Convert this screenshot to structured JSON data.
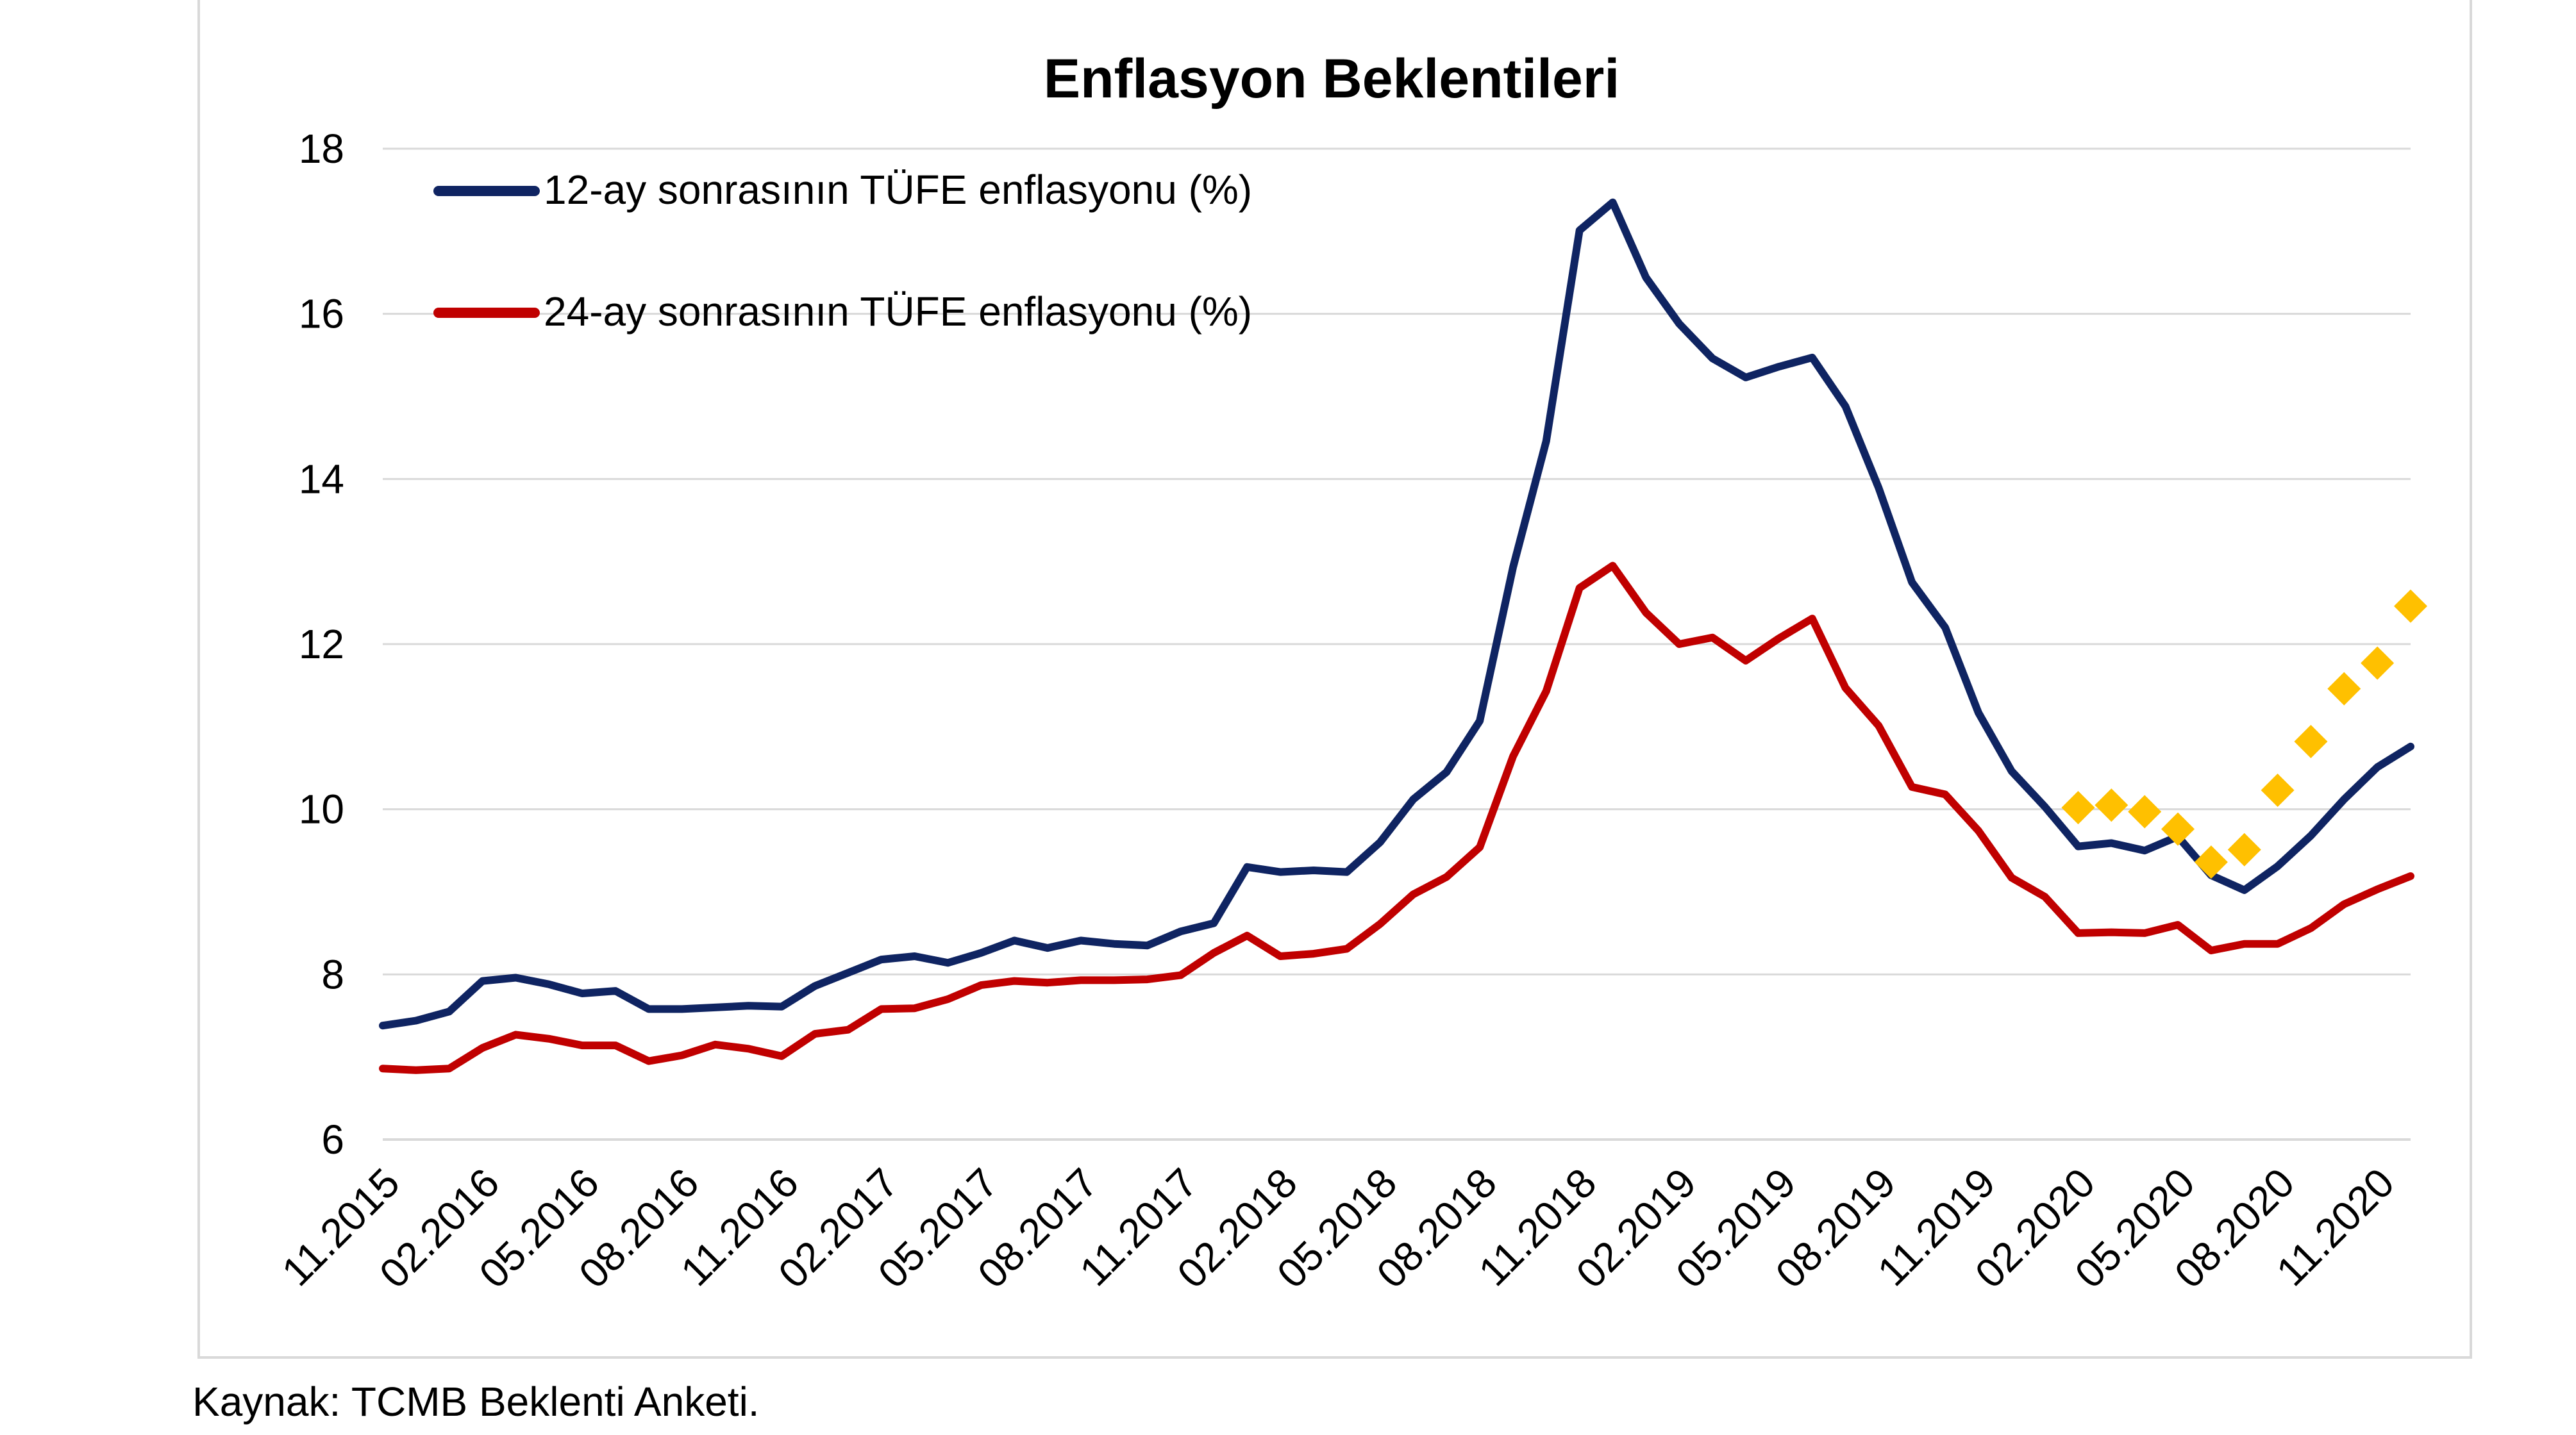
{
  "chart_data": {
    "type": "line",
    "title": "Enflasyon Beklentileri",
    "xlabel": "",
    "ylabel": "",
    "ylim": [
      6,
      18
    ],
    "yticks": [
      6,
      8,
      10,
      12,
      14,
      16,
      18
    ],
    "grid": "horizontal",
    "legend_position": "top-left",
    "x_tick_labels": [
      "11.2015",
      "02.2016",
      "05.2016",
      "08.2016",
      "11.2016",
      "02.2017",
      "05.2017",
      "08.2017",
      "11.2017",
      "02.2018",
      "05.2018",
      "08.2018",
      "11.2018",
      "02.2019",
      "05.2019",
      "08.2019",
      "11.2019",
      "02.2020",
      "05.2020",
      "08.2020",
      "11.2020"
    ],
    "x_start": "11.2015",
    "series": [
      {
        "name": "12-ay sonrasının TÜFE enflasyonu (%)",
        "color": "#0f2462",
        "style": "line",
        "values": [
          7.38,
          7.44,
          7.55,
          7.92,
          7.96,
          7.88,
          7.77,
          7.8,
          7.58,
          7.58,
          7.6,
          7.62,
          7.61,
          7.86,
          8.02,
          8.18,
          8.22,
          8.14,
          8.26,
          8.41,
          8.32,
          8.41,
          8.37,
          8.35,
          8.52,
          8.62,
          9.3,
          9.24,
          9.26,
          9.24,
          9.6,
          10.12,
          10.45,
          11.07,
          12.93,
          14.46,
          17.01,
          17.35,
          16.44,
          15.88,
          15.46,
          15.23,
          15.36,
          15.47,
          14.88,
          13.89,
          12.75,
          12.2,
          11.17,
          10.46,
          10.03,
          9.55,
          9.59,
          9.5,
          9.67,
          9.2,
          9.02,
          9.31,
          9.68,
          10.12,
          10.51,
          10.76
        ]
      },
      {
        "name": "24-ay sonrasının TÜFE enflasyonu (%)",
        "color": "#c00000",
        "style": "line",
        "values": [
          6.86,
          6.84,
          6.86,
          7.11,
          7.27,
          7.22,
          7.14,
          7.14,
          6.95,
          7.02,
          7.15,
          7.1,
          7.01,
          7.28,
          7.33,
          7.58,
          7.59,
          7.7,
          7.87,
          7.92,
          7.9,
          7.93,
          7.93,
          7.94,
          7.99,
          8.26,
          8.47,
          8.22,
          8.25,
          8.31,
          8.61,
          8.97,
          9.18,
          9.54,
          10.64,
          11.43,
          12.68,
          12.95,
          12.38,
          12.0,
          12.08,
          11.8,
          12.07,
          12.31,
          11.47,
          11.01,
          10.27,
          10.18,
          9.74,
          9.17,
          8.94,
          8.5,
          8.51,
          8.5,
          8.6,
          8.29,
          8.37,
          8.37,
          8.56,
          8.85,
          9.03,
          9.19
        ]
      },
      {
        "name": "",
        "color": "#ffc000",
        "style": "diamond-markers",
        "start_index": 51,
        "values": [
          10.02,
          10.05,
          9.97,
          9.76,
          9.36,
          9.51,
          10.23,
          10.82,
          11.46,
          11.77,
          12.46
        ]
      }
    ]
  },
  "source_note": "Kaynak: TCMB Beklenti Anketi."
}
